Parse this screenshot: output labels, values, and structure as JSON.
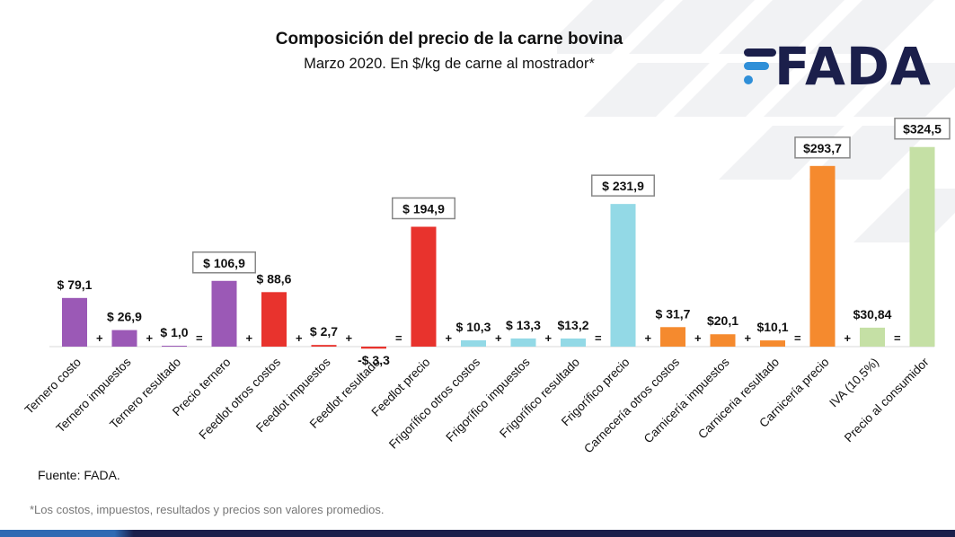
{
  "header": {
    "title": "Composición del precio de la carne bovina",
    "subtitle": "Marzo 2020. En $/kg de carne al mostrador*"
  },
  "logo": {
    "text": "FADA",
    "brand_color": "#1b1f4b",
    "accent_color": "#2f8fd8"
  },
  "footer": {
    "source": "Fuente: FADA.",
    "note": "*Los costos, impuestos, resultados y precios son valores promedios."
  },
  "colors": {
    "ternero": "#9b59b6",
    "feedlot": "#e8332d",
    "frigorifico": "#93d9e6",
    "carniceria": "#f58a2e",
    "consumidor": "#c5e0a5"
  },
  "chart_data": {
    "type": "bar",
    "categories": [
      "Ternero costo",
      "Ternero impuestos",
      "Ternero resultado",
      "Precio ternero",
      "Feedlot otros costos",
      "Feedlot impuestos",
      "Feedlot resultado",
      "Feedlot precio",
      "Frigorífico otros costos",
      "Frigorífico impuestos",
      "Frigorífico resultado",
      "Frigorífico precio",
      "Carnecería otros costos",
      "Carnicería impuestos",
      "Carniceria resultado",
      "Carnicería precio",
      "IVA (10,5%)",
      "Precio al consumidor"
    ],
    "values": [
      79.1,
      26.9,
      1.0,
      106.9,
      88.6,
      2.7,
      -3.3,
      194.9,
      10.3,
      13.3,
      13.2,
      231.9,
      31.7,
      20.1,
      10.1,
      293.7,
      30.84,
      324.5
    ],
    "labels": [
      "$ 79,1",
      "$ 26,9",
      "$ 1,0",
      "$ 106,9",
      "$ 88,6",
      "$ 2,7",
      "-$ 3,3",
      "$ 194,9",
      "$ 10,3",
      "$ 13,3",
      "$13,2",
      "$ 231,9",
      "$ 31,7",
      "$20,1",
      "$10,1",
      "$293,7",
      "$30,84",
      "$324,5"
    ],
    "groups": [
      "ternero",
      "ternero",
      "ternero",
      "ternero",
      "feedlot",
      "feedlot",
      "feedlot",
      "feedlot",
      "frigorifico",
      "frigorifico",
      "frigorifico",
      "frigorifico",
      "carniceria",
      "carniceria",
      "carniceria",
      "carniceria",
      "consumidor",
      "consumidor"
    ],
    "boxed": [
      false,
      false,
      false,
      true,
      false,
      false,
      false,
      true,
      false,
      false,
      false,
      true,
      false,
      false,
      false,
      true,
      false,
      true
    ],
    "operators": [
      "+",
      "+",
      "=",
      "+",
      "+",
      "+",
      "=",
      "+",
      "+",
      "+",
      "=",
      "+",
      "+",
      "+",
      "=",
      "+",
      "=",
      ""
    ],
    "title": "Composición del precio de la carne bovina",
    "xlabel": "",
    "ylabel": "",
    "grid": false,
    "legend": "none"
  }
}
